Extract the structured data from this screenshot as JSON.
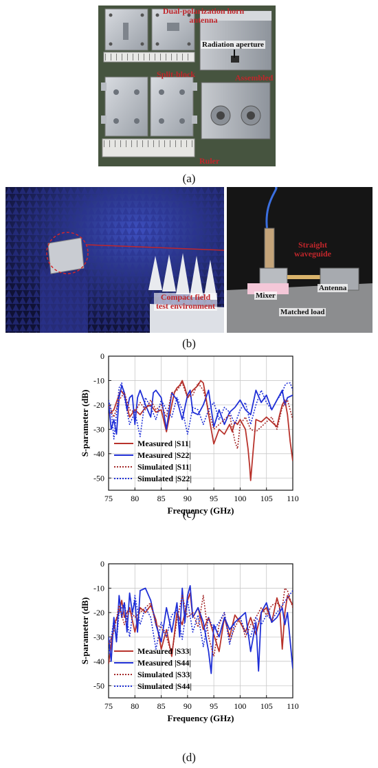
{
  "panel_a": {
    "caption": "(a)",
    "labels": {
      "horn": "Dual-polarization horn antenna",
      "aperture": "Radiation aperture",
      "split": "Split-block",
      "assembled": "Assembled",
      "ruler": "Ruler"
    }
  },
  "panel_b": {
    "caption": "(b)",
    "labels": {
      "compact": "Compact field test environment",
      "straight": "Straight waveguide",
      "mixer": "Mixer",
      "antenna": "Antenna",
      "load": "Matched load"
    }
  },
  "panel_c": {
    "caption": "(c)",
    "legend": [
      "Measured |S11|",
      "Measured |S22|",
      "Simulated |S11|",
      "Simulated |S22|"
    ]
  },
  "panel_d": {
    "caption": "(d)",
    "legend": [
      "Measured |S33|",
      "Measured |S44|",
      "Simulated |S33|",
      "Simulated |S44|"
    ]
  },
  "colors": {
    "measured_a": "#b8322b",
    "measured_b": "#1f2fd6",
    "simulated_a": "#a52a2a",
    "simulated_b": "#1f2fd6"
  },
  "chart_data": [
    {
      "type": "line",
      "xlabel": "Frequency (GHz)",
      "ylabel": "S-parameter (dB)",
      "xlim": [
        75,
        110
      ],
      "ylim": [
        -55,
        0
      ],
      "xticks": [
        75,
        80,
        85,
        90,
        95,
        100,
        105,
        110
      ],
      "yticks": [
        0,
        -10,
        -20,
        -30,
        -40,
        -50
      ],
      "grid": true,
      "legend_position": "bottom-left",
      "series": [
        {
          "name": "Measured |S11|",
          "style": "solid",
          "color": "#b8322b",
          "x": [
            75,
            76,
            76.8,
            77.3,
            78,
            79,
            80,
            81,
            82,
            83,
            84,
            85,
            86,
            87,
            87.5,
            88,
            88.5,
            89,
            89.5,
            90,
            91,
            92,
            92.5,
            93,
            93.5,
            94,
            94.5,
            95,
            96,
            97,
            98,
            98.5,
            99,
            99.5,
            100,
            101,
            101.5,
            101.8,
            102,
            102.5,
            103,
            104,
            105,
            106,
            107,
            107.5,
            108,
            108.5,
            109,
            109.5,
            110
          ],
          "y": [
            -24,
            -22,
            -17,
            -14,
            -16,
            -25,
            -22,
            -24,
            -21,
            -20,
            -23,
            -22,
            -31,
            -20,
            -15,
            -13,
            -12,
            -10,
            -13,
            -17,
            -14,
            -12,
            -10,
            -11,
            -17,
            -24,
            -30,
            -36,
            -30,
            -32,
            -28,
            -31,
            -27,
            -28,
            -26,
            -30,
            -38,
            -45,
            -51,
            -38,
            -26,
            -27,
            -25,
            -27,
            -29,
            -24,
            -20,
            -18,
            -24,
            -35,
            -43
          ]
        },
        {
          "name": "Measured |S22|",
          "style": "solid",
          "color": "#1f2fd6",
          "x": [
            75,
            75.5,
            76,
            76.5,
            77,
            77.5,
            78,
            78.5,
            79,
            79.5,
            80,
            80.5,
            81,
            82,
            83,
            83.5,
            84,
            85,
            86,
            87,
            88,
            89,
            90,
            90.5,
            91,
            92,
            93,
            94,
            95,
            96,
            97,
            98,
            99,
            100,
            101,
            102,
            103,
            104,
            105,
            106,
            107,
            108,
            108.5,
            109,
            110
          ],
          "y": [
            -19,
            -30,
            -26,
            -32,
            -17,
            -12,
            -15,
            -22,
            -17,
            -16,
            -28,
            -17,
            -14,
            -20,
            -25,
            -15,
            -14,
            -17,
            -30,
            -15,
            -18,
            -26,
            -16,
            -14,
            -23,
            -24,
            -20,
            -14,
            -29,
            -22,
            -28,
            -23,
            -21,
            -18,
            -22,
            -24,
            -14,
            -19,
            -16,
            -22,
            -18,
            -14,
            -20,
            -17,
            -16
          ]
        },
        {
          "name": "Simulated |S11|",
          "style": "dotted",
          "color": "#a52a2a",
          "x": [
            75,
            76,
            77,
            78,
            79,
            80,
            81,
            82,
            83,
            84,
            85,
            86,
            87,
            88,
            89,
            90,
            91,
            92,
            93,
            94,
            95,
            96,
            97,
            98,
            99,
            99.5,
            100,
            101,
            102,
            103,
            104,
            105,
            106,
            107,
            108,
            109,
            110
          ],
          "y": [
            -20,
            -25,
            -18,
            -15,
            -22,
            -23,
            -19,
            -22,
            -18,
            -22,
            -20,
            -25,
            -15,
            -14,
            -11,
            -17,
            -16,
            -11,
            -14,
            -22,
            -30,
            -28,
            -26,
            -24,
            -35,
            -38,
            -28,
            -25,
            -30,
            -31,
            -29,
            -27,
            -25,
            -30,
            -21,
            -18,
            -26
          ]
        },
        {
          "name": "Simulated |S22|",
          "style": "dotted",
          "color": "#1f2fd6",
          "x": [
            75,
            75.5,
            76,
            77,
            77.5,
            78,
            79,
            80,
            81,
            82,
            83,
            84,
            85,
            86,
            87,
            88,
            89,
            90,
            91,
            92,
            93,
            94,
            95,
            96,
            97,
            98,
            99,
            100,
            101,
            102,
            103,
            104,
            105,
            106,
            107,
            108,
            108.5,
            109,
            109.5,
            110
          ],
          "y": [
            -18,
            -22,
            -34,
            -13,
            -11,
            -17,
            -28,
            -23,
            -33,
            -17,
            -21,
            -26,
            -18,
            -22,
            -25,
            -17,
            -22,
            -32,
            -21,
            -22,
            -28,
            -22,
            -19,
            -26,
            -21,
            -23,
            -28,
            -22,
            -19,
            -28,
            -20,
            -14,
            -19,
            -22,
            -18,
            -15,
            -12,
            -11,
            -11,
            -14
          ]
        }
      ]
    },
    {
      "type": "line",
      "xlabel": "Frequency (GHz)",
      "ylabel": "S-parameter (dB)",
      "xlim": [
        75,
        110
      ],
      "ylim": [
        -55,
        0
      ],
      "xticks": [
        75,
        80,
        85,
        90,
        95,
        100,
        105,
        110
      ],
      "yticks": [
        0,
        -10,
        -20,
        -30,
        -40,
        -50
      ],
      "grid": true,
      "legend_position": "bottom-left",
      "series": [
        {
          "name": "Measured |S33|",
          "style": "solid",
          "color": "#b8322b",
          "x": [
            75,
            76,
            77,
            77.5,
            78,
            79,
            80,
            81,
            82,
            83,
            84,
            85,
            86,
            87,
            88,
            89,
            90,
            90.5,
            91,
            92,
            93,
            94,
            95,
            96,
            97,
            98,
            99,
            100,
            101,
            102,
            103,
            104,
            105,
            106,
            107,
            107.5,
            108,
            108.5,
            109,
            110
          ],
          "y": [
            -41,
            -25,
            -20,
            -15,
            -22,
            -18,
            -28,
            -18,
            -20,
            -17,
            -23,
            -35,
            -27,
            -38,
            -20,
            -25,
            -15,
            -12,
            -22,
            -18,
            -27,
            -22,
            -29,
            -36,
            -22,
            -30,
            -21,
            -24,
            -28,
            -22,
            -29,
            -20,
            -18,
            -24,
            -14,
            -18,
            -35,
            -20,
            -13,
            -17
          ]
        },
        {
          "name": "Measured |S44|",
          "style": "solid",
          "color": "#1f2fd6",
          "x": [
            75,
            75.5,
            76,
            76.5,
            77,
            77.5,
            78,
            78.5,
            79,
            79.5,
            80,
            80.5,
            81,
            82,
            83,
            84,
            85,
            86,
            87,
            88,
            88.5,
            89,
            89.5,
            90,
            90.5,
            91,
            92,
            93,
            94,
            94.5,
            95,
            96,
            97,
            98,
            99,
            100,
            101,
            102,
            103,
            103.5,
            104,
            105,
            106,
            107,
            108,
            108.5,
            109,
            110
          ],
          "y": [
            -30,
            -40,
            -22,
            -32,
            -13,
            -22,
            -16,
            -28,
            -12,
            -20,
            -15,
            -28,
            -11,
            -10,
            -15,
            -25,
            -32,
            -18,
            -28,
            -16,
            -30,
            -10,
            -24,
            -13,
            -9,
            -22,
            -18,
            -24,
            -36,
            -45,
            -25,
            -30,
            -22,
            -27,
            -24,
            -22,
            -20,
            -36,
            -24,
            -44,
            -20,
            -16,
            -24,
            -22,
            -18,
            -25,
            -20,
            -43
          ]
        },
        {
          "name": "Simulated |S33|",
          "style": "dotted",
          "color": "#a52a2a",
          "x": [
            75,
            76,
            77,
            78,
            79,
            80,
            81,
            82,
            83,
            84,
            85,
            86,
            87,
            88,
            89,
            90,
            91,
            92,
            93,
            94,
            95,
            96,
            97,
            98,
            99,
            100,
            101,
            102,
            103,
            104,
            105,
            106,
            107,
            108,
            108.5,
            109,
            110
          ],
          "y": [
            -33,
            -28,
            -17,
            -25,
            -19,
            -22,
            -20,
            -18,
            -16,
            -25,
            -26,
            -30,
            -37,
            -23,
            -13,
            -22,
            -20,
            -26,
            -13,
            -30,
            -38,
            -25,
            -20,
            -32,
            -26,
            -22,
            -30,
            -25,
            -22,
            -18,
            -21,
            -17,
            -16,
            -18,
            -10,
            -11,
            -18
          ]
        },
        {
          "name": "Simulated |S44|",
          "style": "dotted",
          "color": "#1f2fd6",
          "x": [
            75,
            76,
            76.5,
            77,
            78,
            79,
            80,
            81,
            82,
            83,
            84,
            85,
            86,
            87,
            88,
            89,
            90,
            91,
            92,
            93,
            94,
            95,
            96,
            97,
            98,
            99,
            100,
            101,
            102,
            103,
            104,
            105,
            106,
            107,
            108,
            109,
            110
          ],
          "y": [
            -37,
            -23,
            -32,
            -20,
            -16,
            -30,
            -13,
            -25,
            -18,
            -22,
            -35,
            -24,
            -30,
            -21,
            -19,
            -31,
            -15,
            -28,
            -21,
            -34,
            -22,
            -27,
            -24,
            -20,
            -33,
            -24,
            -22,
            -28,
            -30,
            -22,
            -25,
            -21,
            -23,
            -20,
            -17,
            -14,
            -11
          ]
        }
      ]
    }
  ]
}
